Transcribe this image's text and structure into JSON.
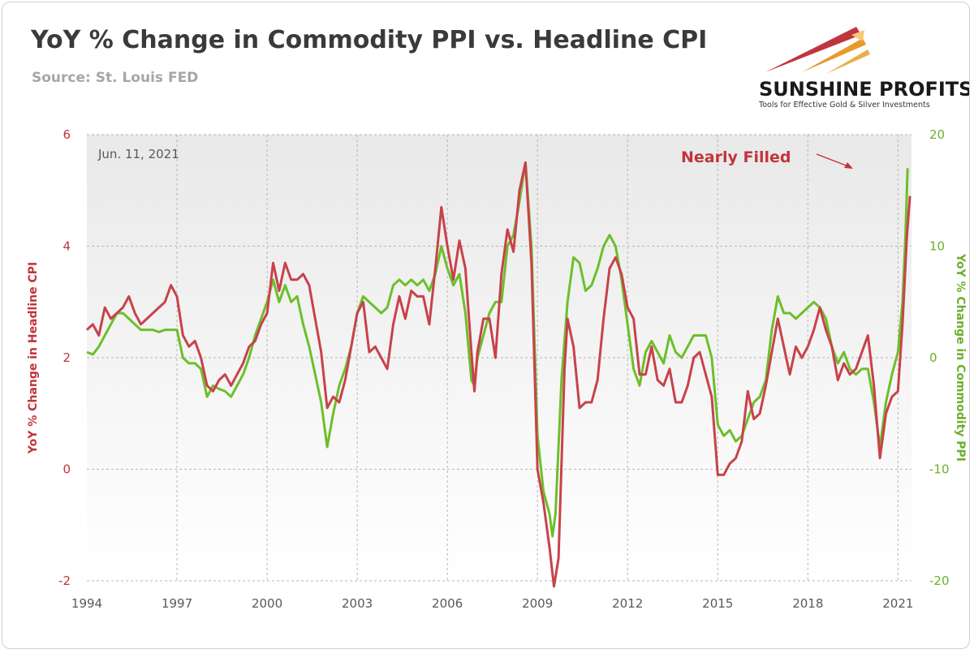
{
  "header": {
    "title": "YoY % Change in Commodity PPI vs. Headline CPI",
    "subtitle": "Source: St. Louis FED"
  },
  "logo": {
    "name": "SUNSHINE PROFITS",
    "tagline": "Tools for Effective Gold & Silver Investments"
  },
  "chart_data": {
    "type": "line",
    "date_label": "Jun. 11, 2021",
    "annotation": "Nearly Filled",
    "x_range": [
      1994,
      2021.45
    ],
    "x_ticks": [
      "1994",
      "1997",
      "2000",
      "2003",
      "2006",
      "2009",
      "2012",
      "2015",
      "2018",
      "2021"
    ],
    "y_left": {
      "label": "YoY % Change in Headline CPI",
      "range": [
        -2,
        6
      ],
      "ticks": [
        "-2",
        "0",
        "2",
        "4",
        "6"
      ]
    },
    "y_right": {
      "label": "YoY % Change in Commodity PPI",
      "range": [
        -20,
        20
      ],
      "ticks": [
        "-20",
        "-10",
        "0",
        "10",
        "20"
      ]
    },
    "grid": true,
    "colors": {
      "cpi": "#c8424a",
      "ppi": "#6cbf2a",
      "grid": "#b5b5b5",
      "plot_bg": "#efefef"
    },
    "series": [
      {
        "key": "cpi",
        "axis": "left",
        "points": [
          [
            1994.0,
            2.5
          ],
          [
            1994.2,
            2.6
          ],
          [
            1994.4,
            2.4
          ],
          [
            1994.6,
            2.9
          ],
          [
            1994.8,
            2.7
          ],
          [
            1995.0,
            2.8
          ],
          [
            1995.2,
            2.9
          ],
          [
            1995.4,
            3.1
          ],
          [
            1995.6,
            2.8
          ],
          [
            1995.8,
            2.6
          ],
          [
            1996.0,
            2.7
          ],
          [
            1996.2,
            2.8
          ],
          [
            1996.4,
            2.9
          ],
          [
            1996.6,
            3.0
          ],
          [
            1996.8,
            3.3
          ],
          [
            1997.0,
            3.1
          ],
          [
            1997.2,
            2.4
          ],
          [
            1997.4,
            2.2
          ],
          [
            1997.6,
            2.3
          ],
          [
            1997.8,
            2.0
          ],
          [
            1998.0,
            1.5
          ],
          [
            1998.2,
            1.4
          ],
          [
            1998.4,
            1.6
          ],
          [
            1998.6,
            1.7
          ],
          [
            1998.8,
            1.5
          ],
          [
            1999.0,
            1.7
          ],
          [
            1999.2,
            1.9
          ],
          [
            1999.4,
            2.2
          ],
          [
            1999.6,
            2.3
          ],
          [
            1999.8,
            2.6
          ],
          [
            2000.0,
            2.8
          ],
          [
            2000.2,
            3.7
          ],
          [
            2000.4,
            3.2
          ],
          [
            2000.6,
            3.7
          ],
          [
            2000.8,
            3.4
          ],
          [
            2001.0,
            3.4
          ],
          [
            2001.2,
            3.5
          ],
          [
            2001.4,
            3.3
          ],
          [
            2001.6,
            2.7
          ],
          [
            2001.8,
            2.1
          ],
          [
            2002.0,
            1.1
          ],
          [
            2002.2,
            1.3
          ],
          [
            2002.4,
            1.2
          ],
          [
            2002.6,
            1.6
          ],
          [
            2002.8,
            2.2
          ],
          [
            2003.0,
            2.8
          ],
          [
            2003.2,
            3.0
          ],
          [
            2003.4,
            2.1
          ],
          [
            2003.6,
            2.2
          ],
          [
            2003.8,
            2.0
          ],
          [
            2004.0,
            1.8
          ],
          [
            2004.2,
            2.6
          ],
          [
            2004.4,
            3.1
          ],
          [
            2004.6,
            2.7
          ],
          [
            2004.8,
            3.2
          ],
          [
            2005.0,
            3.1
          ],
          [
            2005.2,
            3.1
          ],
          [
            2005.4,
            2.6
          ],
          [
            2005.6,
            3.6
          ],
          [
            2005.8,
            4.7
          ],
          [
            2006.0,
            4.0
          ],
          [
            2006.2,
            3.4
          ],
          [
            2006.4,
            4.1
          ],
          [
            2006.6,
            3.6
          ],
          [
            2006.8,
            2.1
          ],
          [
            2006.9,
            1.4
          ],
          [
            2007.0,
            2.1
          ],
          [
            2007.2,
            2.7
          ],
          [
            2007.4,
            2.7
          ],
          [
            2007.6,
            2.0
          ],
          [
            2007.8,
            3.5
          ],
          [
            2008.0,
            4.3
          ],
          [
            2008.2,
            3.9
          ],
          [
            2008.4,
            5.0
          ],
          [
            2008.6,
            5.5
          ],
          [
            2008.8,
            3.7
          ],
          [
            2009.0,
            0.0
          ],
          [
            2009.2,
            -0.6
          ],
          [
            2009.4,
            -1.4
          ],
          [
            2009.55,
            -2.1
          ],
          [
            2009.7,
            -1.6
          ],
          [
            2009.9,
            1.8
          ],
          [
            2010.0,
            2.7
          ],
          [
            2010.2,
            2.2
          ],
          [
            2010.4,
            1.1
          ],
          [
            2010.6,
            1.2
          ],
          [
            2010.8,
            1.2
          ],
          [
            2011.0,
            1.6
          ],
          [
            2011.2,
            2.7
          ],
          [
            2011.4,
            3.6
          ],
          [
            2011.6,
            3.8
          ],
          [
            2011.8,
            3.5
          ],
          [
            2012.0,
            2.9
          ],
          [
            2012.2,
            2.7
          ],
          [
            2012.4,
            1.7
          ],
          [
            2012.6,
            1.7
          ],
          [
            2012.8,
            2.2
          ],
          [
            2013.0,
            1.6
          ],
          [
            2013.2,
            1.5
          ],
          [
            2013.4,
            1.8
          ],
          [
            2013.6,
            1.2
          ],
          [
            2013.8,
            1.2
          ],
          [
            2014.0,
            1.5
          ],
          [
            2014.2,
            2.0
          ],
          [
            2014.4,
            2.1
          ],
          [
            2014.6,
            1.7
          ],
          [
            2014.8,
            1.3
          ],
          [
            2015.0,
            -0.1
          ],
          [
            2015.2,
            -0.1
          ],
          [
            2015.4,
            0.1
          ],
          [
            2015.6,
            0.2
          ],
          [
            2015.8,
            0.5
          ],
          [
            2016.0,
            1.4
          ],
          [
            2016.2,
            0.9
          ],
          [
            2016.4,
            1.0
          ],
          [
            2016.6,
            1.5
          ],
          [
            2016.8,
            2.1
          ],
          [
            2017.0,
            2.7
          ],
          [
            2017.2,
            2.2
          ],
          [
            2017.4,
            1.7
          ],
          [
            2017.6,
            2.2
          ],
          [
            2017.8,
            2.0
          ],
          [
            2018.0,
            2.2
          ],
          [
            2018.2,
            2.5
          ],
          [
            2018.4,
            2.9
          ],
          [
            2018.6,
            2.5
          ],
          [
            2018.8,
            2.2
          ],
          [
            2019.0,
            1.6
          ],
          [
            2019.2,
            1.9
          ],
          [
            2019.4,
            1.7
          ],
          [
            2019.6,
            1.8
          ],
          [
            2019.8,
            2.1
          ],
          [
            2020.0,
            2.4
          ],
          [
            2020.2,
            1.5
          ],
          [
            2020.4,
            0.2
          ],
          [
            2020.6,
            1.0
          ],
          [
            2020.8,
            1.3
          ],
          [
            2021.0,
            1.4
          ],
          [
            2021.15,
            2.6
          ],
          [
            2021.3,
            4.2
          ],
          [
            2021.4,
            4.9
          ]
        ]
      },
      {
        "key": "ppi",
        "axis": "right",
        "points": [
          [
            1994.0,
            0.5
          ],
          [
            1994.2,
            0.3
          ],
          [
            1994.4,
            1.0
          ],
          [
            1994.6,
            2.0
          ],
          [
            1994.8,
            3.0
          ],
          [
            1995.0,
            4.0
          ],
          [
            1995.2,
            4.0
          ],
          [
            1995.4,
            3.5
          ],
          [
            1995.6,
            3.0
          ],
          [
            1995.8,
            2.5
          ],
          [
            1996.0,
            2.5
          ],
          [
            1996.2,
            2.5
          ],
          [
            1996.4,
            2.3
          ],
          [
            1996.6,
            2.5
          ],
          [
            1996.8,
            2.5
          ],
          [
            1997.0,
            2.5
          ],
          [
            1997.2,
            0.0
          ],
          [
            1997.4,
            -0.5
          ],
          [
            1997.6,
            -0.5
          ],
          [
            1997.8,
            -1.0
          ],
          [
            1998.0,
            -3.5
          ],
          [
            1998.2,
            -2.5
          ],
          [
            1998.4,
            -2.8
          ],
          [
            1998.6,
            -3.0
          ],
          [
            1998.8,
            -3.5
          ],
          [
            1999.0,
            -2.5
          ],
          [
            1999.2,
            -1.5
          ],
          [
            1999.4,
            0.0
          ],
          [
            1999.6,
            2.0
          ],
          [
            1999.8,
            3.5
          ],
          [
            2000.0,
            5.0
          ],
          [
            2000.2,
            7.0
          ],
          [
            2000.4,
            5.0
          ],
          [
            2000.6,
            6.5
          ],
          [
            2000.8,
            5.0
          ],
          [
            2001.0,
            5.5
          ],
          [
            2001.2,
            3.0
          ],
          [
            2001.4,
            1.0
          ],
          [
            2001.6,
            -1.5
          ],
          [
            2001.8,
            -4.0
          ],
          [
            2002.0,
            -8.0
          ],
          [
            2002.2,
            -5.0
          ],
          [
            2002.4,
            -2.5
          ],
          [
            2002.6,
            -1.0
          ],
          [
            2002.8,
            1.0
          ],
          [
            2003.0,
            4.0
          ],
          [
            2003.2,
            5.5
          ],
          [
            2003.4,
            5.0
          ],
          [
            2003.6,
            4.5
          ],
          [
            2003.8,
            4.0
          ],
          [
            2004.0,
            4.5
          ],
          [
            2004.2,
            6.5
          ],
          [
            2004.4,
            7.0
          ],
          [
            2004.6,
            6.5
          ],
          [
            2004.8,
            7.0
          ],
          [
            2005.0,
            6.5
          ],
          [
            2005.2,
            7.0
          ],
          [
            2005.4,
            6.0
          ],
          [
            2005.6,
            7.5
          ],
          [
            2005.8,
            10.0
          ],
          [
            2006.0,
            8.0
          ],
          [
            2006.2,
            6.5
          ],
          [
            2006.4,
            7.5
          ],
          [
            2006.6,
            4.0
          ],
          [
            2006.8,
            -2.0
          ],
          [
            2006.9,
            -2.5
          ],
          [
            2007.0,
            0.0
          ],
          [
            2007.2,
            2.0
          ],
          [
            2007.4,
            4.0
          ],
          [
            2007.6,
            5.0
          ],
          [
            2007.8,
            5.0
          ],
          [
            2008.0,
            10.0
          ],
          [
            2008.2,
            11.0
          ],
          [
            2008.4,
            14.0
          ],
          [
            2008.6,
            17.5
          ],
          [
            2008.8,
            10.0
          ],
          [
            2009.0,
            -7.0
          ],
          [
            2009.2,
            -12.0
          ],
          [
            2009.4,
            -14.0
          ],
          [
            2009.5,
            -16.0
          ],
          [
            2009.6,
            -14.0
          ],
          [
            2009.8,
            -2.0
          ],
          [
            2010.0,
            5.0
          ],
          [
            2010.2,
            9.0
          ],
          [
            2010.4,
            8.5
          ],
          [
            2010.6,
            6.0
          ],
          [
            2010.8,
            6.5
          ],
          [
            2011.0,
            8.0
          ],
          [
            2011.2,
            10.0
          ],
          [
            2011.4,
            11.0
          ],
          [
            2011.6,
            10.0
          ],
          [
            2011.8,
            7.0
          ],
          [
            2012.0,
            3.0
          ],
          [
            2012.2,
            -1.0
          ],
          [
            2012.4,
            -2.5
          ],
          [
            2012.6,
            0.5
          ],
          [
            2012.8,
            1.5
          ],
          [
            2013.0,
            0.5
          ],
          [
            2013.2,
            -0.5
          ],
          [
            2013.4,
            2.0
          ],
          [
            2013.6,
            0.5
          ],
          [
            2013.8,
            0.0
          ],
          [
            2014.0,
            1.0
          ],
          [
            2014.2,
            2.0
          ],
          [
            2014.4,
            2.0
          ],
          [
            2014.6,
            2.0
          ],
          [
            2014.8,
            0.0
          ],
          [
            2015.0,
            -6.0
          ],
          [
            2015.2,
            -7.0
          ],
          [
            2015.4,
            -6.5
          ],
          [
            2015.6,
            -7.5
          ],
          [
            2015.8,
            -7.0
          ],
          [
            2016.0,
            -5.5
          ],
          [
            2016.2,
            -4.0
          ],
          [
            2016.4,
            -3.5
          ],
          [
            2016.6,
            -2.0
          ],
          [
            2016.8,
            2.5
          ],
          [
            2017.0,
            5.5
          ],
          [
            2017.2,
            4.0
          ],
          [
            2017.4,
            4.0
          ],
          [
            2017.6,
            3.5
          ],
          [
            2017.8,
            4.0
          ],
          [
            2018.0,
            4.5
          ],
          [
            2018.2,
            5.0
          ],
          [
            2018.4,
            4.5
          ],
          [
            2018.6,
            3.5
          ],
          [
            2018.8,
            1.0
          ],
          [
            2019.0,
            -0.5
          ],
          [
            2019.2,
            0.5
          ],
          [
            2019.4,
            -1.0
          ],
          [
            2019.6,
            -1.5
          ],
          [
            2019.8,
            -1.0
          ],
          [
            2020.0,
            -1.0
          ],
          [
            2020.2,
            -4.0
          ],
          [
            2020.4,
            -8.0
          ],
          [
            2020.6,
            -4.0
          ],
          [
            2020.8,
            -1.5
          ],
          [
            2021.0,
            0.5
          ],
          [
            2021.15,
            5.0
          ],
          [
            2021.25,
            11.0
          ],
          [
            2021.32,
            17.0
          ]
        ]
      }
    ]
  }
}
